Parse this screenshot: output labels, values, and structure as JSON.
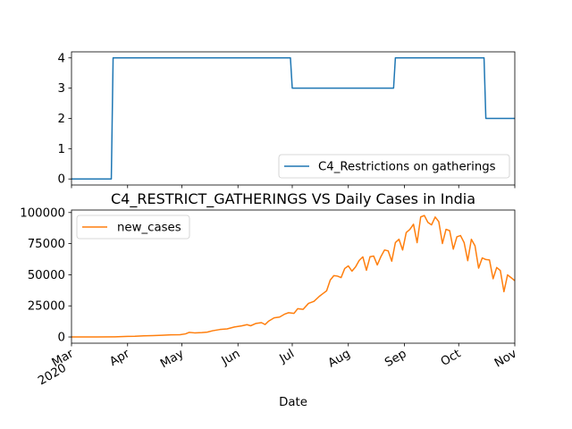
{
  "chart_data": [
    {
      "type": "line",
      "title": "",
      "xlabel": "",
      "ylabel": "",
      "x_range": [
        "2020-03-01",
        "2020-11-01"
      ],
      "ylim": [
        -0.2,
        4.2
      ],
      "yticks": [
        0,
        1,
        2,
        3,
        4
      ],
      "grid": false,
      "legend_position": "lower-right",
      "series": [
        {
          "name": "C4_Restrictions on gatherings",
          "color": "#1f77b4",
          "step": true,
          "points": [
            [
              "2020-03-01",
              0
            ],
            [
              "2020-03-23",
              0
            ],
            [
              "2020-03-24",
              4
            ],
            [
              "2020-06-30",
              4
            ],
            [
              "2020-07-01",
              3
            ],
            [
              "2020-08-26",
              3
            ],
            [
              "2020-08-27",
              4
            ],
            [
              "2020-10-15",
              4
            ],
            [
              "2020-10-16",
              2
            ],
            [
              "2020-11-01",
              2
            ]
          ]
        }
      ]
    },
    {
      "type": "line",
      "title": "C4_RESTRICT_GATHERINGS VS Daily Cases in India",
      "xlabel": "Date",
      "ylabel": "",
      "x_range": [
        "2020-03-01",
        "2020-11-01"
      ],
      "ylim": [
        -5000,
        102000
      ],
      "yticks": [
        0,
        25000,
        50000,
        75000,
        100000
      ],
      "grid": false,
      "legend_position": "upper-left",
      "xticks": [
        {
          "date": "2020-03-01",
          "label": "Mar",
          "sublabel": "2020"
        },
        {
          "date": "2020-04-01",
          "label": "Apr"
        },
        {
          "date": "2020-05-01",
          "label": "May"
        },
        {
          "date": "2020-06-01",
          "label": "Jun"
        },
        {
          "date": "2020-07-01",
          "label": "Jul"
        },
        {
          "date": "2020-08-01",
          "label": "Aug"
        },
        {
          "date": "2020-09-01",
          "label": "Sep"
        },
        {
          "date": "2020-10-01",
          "label": "Oct"
        },
        {
          "date": "2020-11-01",
          "label": "Nov"
        }
      ],
      "series": [
        {
          "name": "new_cases",
          "color": "#ff7f0e",
          "points": [
            [
              "2020-03-01",
              0
            ],
            [
              "2020-03-15",
              50
            ],
            [
              "2020-03-25",
              100
            ],
            [
              "2020-04-01",
              500
            ],
            [
              "2020-04-05",
              600
            ],
            [
              "2020-04-10",
              900
            ],
            [
              "2020-04-15",
              1100
            ],
            [
              "2020-04-20",
              1400
            ],
            [
              "2020-04-25",
              1700
            ],
            [
              "2020-04-30",
              1800
            ],
            [
              "2020-05-03",
              2500
            ],
            [
              "2020-05-05",
              3700
            ],
            [
              "2020-05-08",
              3300
            ],
            [
              "2020-05-12",
              3500
            ],
            [
              "2020-05-15",
              3900
            ],
            [
              "2020-05-18",
              5000
            ],
            [
              "2020-05-22",
              6000
            ],
            [
              "2020-05-26",
              6500
            ],
            [
              "2020-05-30",
              8000
            ],
            [
              "2020-06-03",
              8900
            ],
            [
              "2020-06-06",
              9900
            ],
            [
              "2020-06-08",
              9000
            ],
            [
              "2020-06-11",
              10900
            ],
            [
              "2020-06-14",
              11500
            ],
            [
              "2020-06-16",
              10000
            ],
            [
              "2020-06-18",
              12800
            ],
            [
              "2020-06-21",
              15400
            ],
            [
              "2020-06-24",
              16000
            ],
            [
              "2020-06-27",
              18500
            ],
            [
              "2020-06-29",
              19500
            ],
            [
              "2020-07-02",
              19000
            ],
            [
              "2020-07-04",
              22700
            ],
            [
              "2020-07-07",
              22200
            ],
            [
              "2020-07-10",
              27000
            ],
            [
              "2020-07-13",
              28600
            ],
            [
              "2020-07-16",
              32700
            ],
            [
              "2020-07-18",
              34900
            ],
            [
              "2020-07-20",
              37100
            ],
            [
              "2020-07-22",
              45700
            ],
            [
              "2020-07-24",
              49300
            ],
            [
              "2020-07-26",
              48900
            ],
            [
              "2020-07-28",
              47700
            ],
            [
              "2020-07-30",
              55000
            ],
            [
              "2020-08-01",
              57100
            ],
            [
              "2020-08-03",
              52900
            ],
            [
              "2020-08-05",
              56300
            ],
            [
              "2020-08-07",
              61500
            ],
            [
              "2020-08-09",
              64400
            ],
            [
              "2020-08-11",
              53600
            ],
            [
              "2020-08-13",
              64500
            ],
            [
              "2020-08-15",
              65000
            ],
            [
              "2020-08-17",
              57900
            ],
            [
              "2020-08-19",
              64600
            ],
            [
              "2020-08-21",
              69900
            ],
            [
              "2020-08-23",
              69200
            ],
            [
              "2020-08-25",
              60900
            ],
            [
              "2020-08-27",
              75800
            ],
            [
              "2020-08-29",
              78500
            ],
            [
              "2020-08-31",
              69900
            ],
            [
              "2020-09-02",
              83900
            ],
            [
              "2020-09-04",
              86400
            ],
            [
              "2020-09-06",
              90600
            ],
            [
              "2020-09-08",
              75800
            ],
            [
              "2020-09-10",
              96500
            ],
            [
              "2020-09-12",
              97600
            ],
            [
              "2020-09-14",
              92000
            ],
            [
              "2020-09-16",
              90100
            ],
            [
              "2020-09-18",
              96400
            ],
            [
              "2020-09-20",
              92600
            ],
            [
              "2020-09-22",
              75100
            ],
            [
              "2020-09-24",
              86500
            ],
            [
              "2020-09-26",
              85400
            ],
            [
              "2020-09-28",
              70600
            ],
            [
              "2020-09-30",
              80500
            ],
            [
              "2020-10-02",
              81500
            ],
            [
              "2020-10-04",
              75800
            ],
            [
              "2020-10-06",
              61300
            ],
            [
              "2020-10-08",
              78500
            ],
            [
              "2020-10-10",
              73300
            ],
            [
              "2020-10-12",
              55300
            ],
            [
              "2020-10-14",
              63500
            ],
            [
              "2020-10-16",
              62200
            ],
            [
              "2020-10-18",
              61900
            ],
            [
              "2020-10-20",
              46800
            ],
            [
              "2020-10-22",
              55800
            ],
            [
              "2020-10-24",
              53400
            ],
            [
              "2020-10-26",
              36400
            ],
            [
              "2020-10-28",
              49900
            ],
            [
              "2020-10-30",
              47600
            ],
            [
              "2020-11-01",
              45200
            ]
          ]
        }
      ]
    }
  ]
}
